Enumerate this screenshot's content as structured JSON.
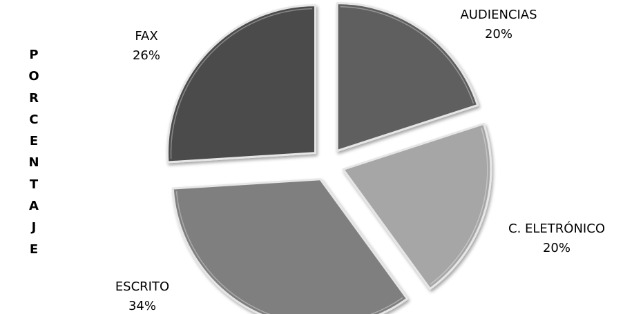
{
  "chart_data": {
    "type": "pie",
    "ylabel": "PORCENTAJE",
    "slices": [
      {
        "label": "AUDIENCIAS",
        "value": 20,
        "value_label": "20%",
        "color": "#5f5f5f"
      },
      {
        "label": "C. ELETRÓNICO",
        "value": 20,
        "value_label": "20%",
        "color": "#a6a6a6"
      },
      {
        "label": "ESCRITO",
        "value": 34,
        "value_label": "34%",
        "color": "#7f7f7f"
      },
      {
        "label": "FAX",
        "value": 26,
        "value_label": "26%",
        "color": "#4b4b4b"
      }
    ],
    "exploded": true,
    "legend": "none"
  }
}
